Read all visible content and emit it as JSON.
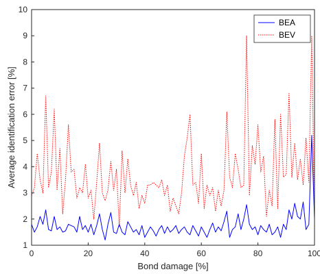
{
  "chart_data": {
    "type": "line",
    "title": "",
    "xlabel": "Bond damage [%]",
    "ylabel": "Average identification error [%]",
    "xlim": [
      0,
      100
    ],
    "ylim": [
      1,
      10
    ],
    "xticks": [
      0,
      20,
      40,
      60,
      80,
      100
    ],
    "yticks": [
      1,
      2,
      3,
      4,
      5,
      6,
      7,
      8,
      9,
      10
    ],
    "grid": false,
    "legend_position": "top-right",
    "series": [
      {
        "name": "BEA",
        "color": "#0000ff",
        "style": "solid",
        "x": [
          0,
          1,
          2,
          3,
          4,
          5,
          6,
          7,
          8,
          9,
          10,
          11,
          12,
          13,
          14,
          15,
          16,
          17,
          18,
          19,
          20,
          21,
          22,
          23,
          24,
          25,
          26,
          27,
          28,
          29,
          30,
          31,
          32,
          33,
          34,
          35,
          36,
          37,
          38,
          39,
          40,
          41,
          42,
          43,
          44,
          45,
          46,
          47,
          48,
          49,
          50,
          51,
          52,
          53,
          54,
          55,
          56,
          57,
          58,
          59,
          60,
          61,
          62,
          63,
          64,
          65,
          66,
          67,
          68,
          69,
          70,
          71,
          72,
          73,
          74,
          75,
          76,
          77,
          78,
          79,
          80,
          81,
          82,
          83,
          84,
          85,
          86,
          87,
          88,
          89,
          90,
          91,
          92,
          93,
          94,
          95,
          96,
          97,
          98,
          99,
          100
        ],
        "y": [
          1.8,
          1.5,
          1.7,
          2.1,
          1.8,
          2.35,
          1.6,
          1.55,
          2.1,
          1.6,
          1.7,
          1.5,
          1.55,
          1.8,
          1.75,
          1.7,
          1.5,
          2.1,
          1.6,
          1.75,
          1.5,
          1.8,
          1.4,
          1.75,
          2.2,
          1.6,
          1.2,
          1.8,
          2.25,
          1.5,
          1.45,
          1.8,
          1.5,
          1.4,
          1.9,
          1.7,
          1.5,
          1.6,
          1.4,
          1.75,
          1.3,
          1.5,
          1.7,
          1.55,
          1.35,
          1.6,
          1.75,
          1.45,
          1.7,
          1.5,
          1.6,
          1.75,
          1.45,
          1.6,
          1.7,
          1.5,
          1.4,
          1.75,
          1.55,
          1.35,
          1.7,
          1.5,
          1.3,
          1.6,
          1.85,
          1.5,
          1.7,
          1.55,
          1.9,
          2.3,
          1.3,
          1.6,
          1.7,
          2.2,
          1.6,
          2.0,
          2.55,
          1.8,
          1.6,
          1.7,
          1.4,
          1.75,
          1.6,
          1.5,
          1.8,
          1.4,
          1.5,
          1.7,
          1.3,
          1.8,
          1.6,
          2.35,
          2.0,
          2.6,
          2.1,
          2.0,
          2.65,
          1.6,
          1.8,
          5.2,
          2.0
        ]
      },
      {
        "name": "BEV",
        "color": "#ff0000",
        "style": "dotted",
        "x": [
          0,
          1,
          2,
          3,
          4,
          5,
          6,
          7,
          8,
          9,
          10,
          11,
          12,
          13,
          14,
          15,
          16,
          17,
          18,
          19,
          20,
          21,
          22,
          23,
          24,
          25,
          26,
          27,
          28,
          29,
          30,
          31,
          32,
          33,
          34,
          35,
          36,
          37,
          38,
          39,
          40,
          41,
          42,
          43,
          44,
          45,
          46,
          47,
          48,
          49,
          50,
          51,
          52,
          53,
          54,
          55,
          56,
          57,
          58,
          59,
          60,
          61,
          62,
          63,
          64,
          65,
          66,
          67,
          68,
          69,
          70,
          71,
          72,
          73,
          74,
          75,
          76,
          77,
          78,
          79,
          80,
          81,
          82,
          83,
          84,
          85,
          86,
          87,
          88,
          89,
          90,
          91,
          92,
          93,
          94,
          95,
          96,
          97,
          98,
          99,
          100
        ],
        "y": [
          2.9,
          3.2,
          4.5,
          3.5,
          3.0,
          6.7,
          3.2,
          3.8,
          6.2,
          3.1,
          4.7,
          2.2,
          3.5,
          5.6,
          3.8,
          3.9,
          2.8,
          3.2,
          3.0,
          4.1,
          2.8,
          3.1,
          2.0,
          3.4,
          4.9,
          3.0,
          2.7,
          3.1,
          4.2,
          3.1,
          3.9,
          1.7,
          4.6,
          3.0,
          4.3,
          3.3,
          2.9,
          3.4,
          2.4,
          2.9,
          2.6,
          3.3,
          3.3,
          3.4,
          3.3,
          3.2,
          3.5,
          2.9,
          3.3,
          2.3,
          2.8,
          2.5,
          2.2,
          3.0,
          4.4,
          5.1,
          6.0,
          3.3,
          3.4,
          2.6,
          4.5,
          2.4,
          3.3,
          2.9,
          3.2,
          2.3,
          3.1,
          2.5,
          3.1,
          6.1,
          3.6,
          3.2,
          4.5,
          3.9,
          3.2,
          3.3,
          9.0,
          2.9,
          4.8,
          4.1,
          5.6,
          3.8,
          4.4,
          2.1,
          3.1,
          2.5,
          5.8,
          2.4,
          6.0,
          3.6,
          3.7,
          6.8,
          3.6,
          4.9,
          3.5,
          4.3,
          3.3,
          5.1,
          3.4,
          9.0,
          2.0
        ]
      }
    ]
  }
}
